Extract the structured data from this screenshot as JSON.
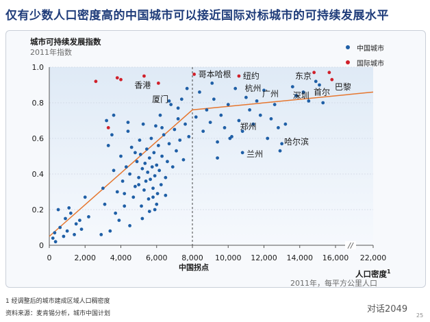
{
  "title": "仅有少数人口密度高的中国城市可以接近国际对标城市的可持续发展水平",
  "footnote": "1 经调整后的城市建成区域人口稠密度",
  "source": "资料来源：麦肯锡分析，城市中国计划",
  "brand": "对话2049",
  "page_number": "25",
  "chart_data": {
    "type": "scatter",
    "ylabel": "城市可持续发展指数",
    "ylabel_sub": "2011年指数",
    "xlabel": "人口密度",
    "xlabel_sup": "1",
    "xlabel_sub": "2011年，每平方公里人口",
    "xlim": [
      0,
      22000
    ],
    "ylim": [
      0,
      1.0
    ],
    "x_ticks": [
      0,
      2000,
      4000,
      6000,
      8000,
      10000,
      12000,
      14000,
      16000,
      22000
    ],
    "x_tick_labels": [
      "0",
      "2,000",
      "4,000",
      "6,000",
      "8,000",
      "10,000",
      "12,000",
      "14,000",
      "16,000",
      "22,000"
    ],
    "y_ticks": [
      0,
      0.2,
      0.4,
      0.6,
      0.8,
      1.0
    ],
    "y_tick_labels": [
      "0",
      "0.2",
      "0.4",
      "0.6",
      "0.8",
      "1.0"
    ],
    "axis_break": "//",
    "inflection": {
      "x": 8000,
      "label": "中国拐点"
    },
    "legend_position": "top-right",
    "trend_line": [
      [
        0,
        0.05
      ],
      [
        8000,
        0.76
      ],
      [
        22000,
        0.86
      ]
    ],
    "colors": {
      "china": "#1f5fa6",
      "international": "#d0202a",
      "trend": "#e6762e"
    },
    "series": [
      {
        "name": "中国城市",
        "points": [
          [
            200,
            0.04
          ],
          [
            300,
            0.07
          ],
          [
            350,
            0.02
          ],
          [
            500,
            0.2
          ],
          [
            600,
            0.1
          ],
          [
            800,
            0.05
          ],
          [
            900,
            0.15
          ],
          [
            1000,
            0.08
          ],
          [
            1100,
            0.21
          ],
          [
            1200,
            0.18
          ],
          [
            1400,
            0.06
          ],
          [
            1500,
            0.12
          ],
          [
            1700,
            0.14
          ],
          [
            1800,
            0.09
          ],
          [
            2000,
            0.27
          ],
          [
            2200,
            0.16
          ],
          [
            2900,
            0.06
          ],
          [
            3000,
            0.32
          ],
          [
            3100,
            0.23
          ],
          [
            3200,
            0.7
          ],
          [
            3300,
            0.56
          ],
          [
            3400,
            0.08
          ],
          [
            3500,
            0.62
          ],
          [
            3600,
            0.42
          ],
          [
            3700,
            0.18
          ],
          [
            3800,
            0.3
          ],
          [
            3900,
            0.14
          ],
          [
            4000,
            0.5
          ],
          [
            4100,
            0.36
          ],
          [
            4200,
            0.29
          ],
          [
            4300,
            0.44
          ],
          [
            4400,
            0.64
          ],
          [
            4500,
            0.4
          ],
          [
            4600,
            0.55
          ],
          [
            4700,
            0.27
          ],
          [
            4800,
            0.33
          ],
          [
            4900,
            0.47
          ],
          [
            5000,
            0.38
          ],
          [
            5050,
            0.59
          ],
          [
            5100,
            0.51
          ],
          [
            5150,
            0.22
          ],
          [
            5200,
            0.43
          ],
          [
            5250,
            0.68
          ],
          [
            5300,
            0.31
          ],
          [
            5350,
            0.46
          ],
          [
            5400,
            0.36
          ],
          [
            5450,
            0.54
          ],
          [
            5500,
            0.41
          ],
          [
            5550,
            0.26
          ],
          [
            5600,
            0.49
          ],
          [
            5650,
            0.37
          ],
          [
            5700,
            0.6
          ],
          [
            5750,
            0.44
          ],
          [
            5800,
            0.32
          ],
          [
            5850,
            0.52
          ],
          [
            5900,
            0.39
          ],
          [
            5950,
            0.67
          ],
          [
            6000,
            0.45
          ],
          [
            6050,
            0.29
          ],
          [
            6100,
            0.56
          ],
          [
            6150,
            0.42
          ],
          [
            6200,
            0.73
          ],
          [
            6250,
            0.34
          ],
          [
            6300,
            0.5
          ],
          [
            6400,
            0.62
          ],
          [
            6500,
            0.38
          ],
          [
            6600,
            0.47
          ],
          [
            6700,
            0.57
          ],
          [
            6800,
            0.79
          ],
          [
            6900,
            0.44
          ],
          [
            7000,
            0.65
          ],
          [
            7100,
            0.53
          ],
          [
            7200,
            0.71
          ],
          [
            7300,
            0.59
          ],
          [
            7400,
            0.82
          ],
          [
            7500,
            0.48
          ],
          [
            7600,
            0.68
          ],
          [
            7700,
            0.88
          ],
          [
            7800,
            0.61
          ],
          [
            5200,
            0.15
          ],
          [
            5600,
            0.19
          ],
          [
            4500,
            0.11
          ],
          [
            6000,
            0.23
          ],
          [
            6500,
            0.28
          ],
          [
            5900,
            0.2
          ],
          [
            4800,
            0.52
          ],
          [
            4400,
            0.69
          ],
          [
            3600,
            0.73
          ],
          [
            6300,
            0.66
          ],
          [
            6700,
            0.81
          ],
          [
            7200,
            0.77
          ],
          [
            4200,
            0.22
          ],
          [
            5000,
            0.34
          ],
          [
            5800,
            0.27
          ],
          [
            8200,
            0.72
          ],
          [
            8400,
            0.86
          ],
          [
            8600,
            0.64
          ],
          [
            8800,
            0.76
          ],
          [
            9000,
            0.69
          ],
          [
            9200,
            0.82
          ],
          [
            9400,
            0.58
          ],
          [
            9600,
            0.73
          ],
          [
            9800,
            0.66
          ],
          [
            10000,
            0.79
          ],
          [
            10200,
            0.61
          ],
          [
            10400,
            0.88
          ],
          [
            10600,
            0.7
          ],
          [
            10800,
            0.64
          ],
          [
            11000,
            0.83
          ],
          [
            11200,
            0.76
          ],
          [
            11400,
            0.68
          ],
          [
            11600,
            0.81
          ],
          [
            11800,
            0.73
          ],
          [
            12000,
            0.87
          ],
          [
            12200,
            0.6
          ],
          [
            12400,
            0.71
          ],
          [
            12600,
            0.79
          ],
          [
            12800,
            0.66
          ],
          [
            13000,
            0.57
          ],
          [
            13200,
            0.68
          ],
          [
            9400,
            0.49
          ],
          [
            10800,
            0.52
          ],
          [
            12900,
            0.53
          ],
          [
            13600,
            0.89
          ],
          [
            13800,
            0.84
          ],
          [
            14200,
            0.86
          ],
          [
            14500,
            0.81
          ],
          [
            14900,
            0.92
          ],
          [
            15100,
            0.9
          ],
          [
            15300,
            0.8
          ],
          [
            9100,
            0.91
          ],
          [
            10100,
            0.6
          ]
        ]
      },
      {
        "name": "国际城市",
        "points": [
          [
            2600,
            0.92
          ],
          [
            3300,
            0.66
          ],
          [
            3800,
            0.94
          ],
          [
            4000,
            0.93
          ],
          [
            5300,
            0.95
          ],
          [
            6100,
            0.91
          ],
          [
            8100,
            0.96
          ],
          [
            10600,
            0.95
          ],
          [
            14800,
            0.97
          ],
          [
            15650,
            0.97
          ],
          [
            15800,
            0.93
          ]
        ]
      }
    ],
    "labels": [
      {
        "text": "香港",
        "x": 6100,
        "y": 0.91,
        "dx": -35,
        "dy": 7
      },
      {
        "text": "厦门",
        "x": 7200,
        "y": 0.82,
        "dx": -38,
        "dy": 4
      },
      {
        "text": "哥本哈根",
        "x": 8100,
        "y": 0.96,
        "dx": 6,
        "dy": 4
      },
      {
        "text": "纽约",
        "x": 10600,
        "y": 0.95,
        "dx": 6,
        "dy": 4
      },
      {
        "text": "杭州",
        "x": 10700,
        "y": 0.88,
        "dx": 6,
        "dy": 4
      },
      {
        "text": "广州",
        "x": 11600,
        "y": 0.85,
        "dx": 8,
        "dy": 4
      },
      {
        "text": "郑州",
        "x": 11200,
        "y": 0.68,
        "dx": -14,
        "dy": 8
      },
      {
        "text": "兰州",
        "x": 10800,
        "y": 0.52,
        "dx": 6,
        "dy": 6
      },
      {
        "text": "哈尔滨",
        "x": 12900,
        "y": 0.58,
        "dx": 6,
        "dy": 4
      },
      {
        "text": "东京",
        "x": 14200,
        "y": 0.95,
        "dx": -12,
        "dy": 4
      },
      {
        "text": "深圳",
        "x": 14000,
        "y": 0.84,
        "dx": -10,
        "dy": 4
      },
      {
        "text": "首尔",
        "x": 14700,
        "y": 0.86,
        "dx": 2,
        "dy": 4
      },
      {
        "text": "巴黎",
        "x": 15650,
        "y": 0.88,
        "dx": 8,
        "dy": 2
      }
    ]
  }
}
